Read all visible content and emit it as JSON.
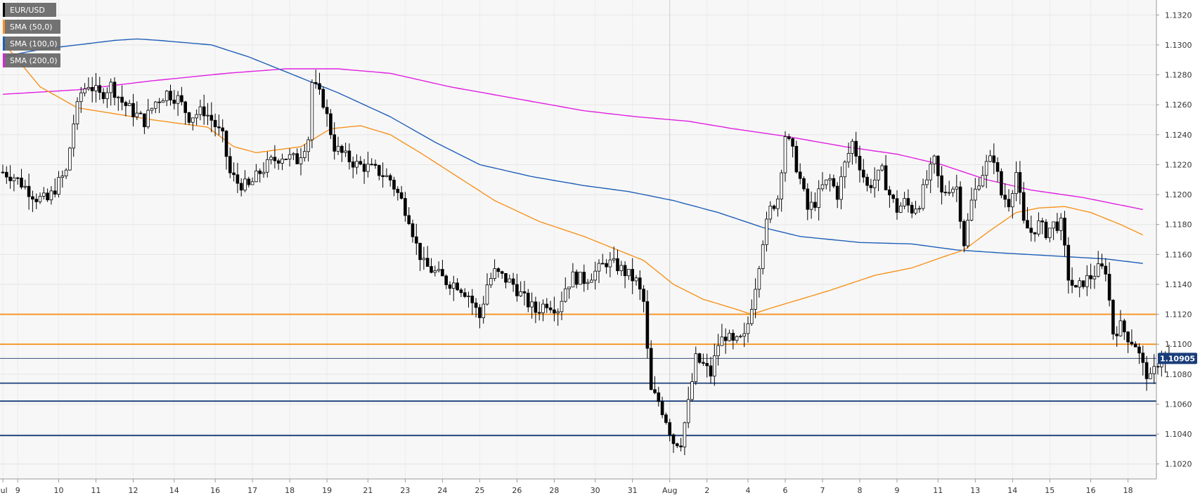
{
  "chart_data": {
    "type": "candlestick",
    "symbol": "EUR/USD",
    "legend_placement": "top-left",
    "legend": [
      {
        "label": "EUR/USD",
        "color": "#000000"
      },
      {
        "label": "SMA (50,0)",
        "color": "#f7931e"
      },
      {
        "label": "SMA (100,0)",
        "color": "#1f5fb8"
      },
      {
        "label": "SMA (200,0)",
        "color": "#e020e0"
      }
    ],
    "ylim": [
      1.101,
      1.133
    ],
    "y_ticks": [
      "1.1020",
      "1.1040",
      "1.1060",
      "1.1080",
      "1.1100",
      "1.1120",
      "1.1140",
      "1.1160",
      "1.1180",
      "1.1200",
      "1.1220",
      "1.1240",
      "1.1260",
      "1.1280",
      "1.1300",
      "1.1320"
    ],
    "x_ticks": [
      {
        "label": "Jul",
        "i": 0
      },
      {
        "label": "9",
        "i": 4
      },
      {
        "label": "10",
        "i": 15
      },
      {
        "label": "11",
        "i": 25
      },
      {
        "label": "12",
        "i": 35
      },
      {
        "label": "14",
        "i": 46
      },
      {
        "label": "16",
        "i": 57
      },
      {
        "label": "17",
        "i": 67
      },
      {
        "label": "18",
        "i": 77
      },
      {
        "label": "19",
        "i": 87
      },
      {
        "label": "21",
        "i": 98
      },
      {
        "label": "23",
        "i": 108
      },
      {
        "label": "24",
        "i": 118
      },
      {
        "label": "25",
        "i": 128
      },
      {
        "label": "26",
        "i": 138
      },
      {
        "label": "28",
        "i": 148
      },
      {
        "label": "30",
        "i": 159
      },
      {
        "label": "31",
        "i": 169
      },
      {
        "label": "Aug",
        "i": 179
      },
      {
        "label": "2",
        "i": 189
      },
      {
        "label": "4",
        "i": 200
      },
      {
        "label": "6",
        "i": 210
      },
      {
        "label": "7",
        "i": 220
      },
      {
        "label": "8",
        "i": 230
      },
      {
        "label": "9",
        "i": 240
      },
      {
        "label": "11",
        "i": 251
      },
      {
        "label": "13",
        "i": 261
      },
      {
        "label": "14",
        "i": 271
      },
      {
        "label": "15",
        "i": 281
      },
      {
        "label": "16",
        "i": 292
      },
      {
        "label": "18",
        "i": 302
      }
    ],
    "vertical_separator_index": 179,
    "grid": true,
    "current_price": {
      "label": "1.10905",
      "value": 1.10905,
      "color": "#1a3d7a"
    },
    "horizontal_levels": [
      {
        "value": 1.112,
        "color": "#f7931e"
      },
      {
        "value": 1.11,
        "color": "#f7931e"
      },
      {
        "value": 1.1074,
        "color": "#1a3d7a"
      },
      {
        "value": 1.1062,
        "color": "#1a3d7a"
      },
      {
        "value": 1.1039,
        "color": "#1a3d7a"
      }
    ],
    "price_anchors": [
      [
        0,
        1.1215
      ],
      [
        3,
        1.1212
      ],
      [
        6,
        1.1205
      ],
      [
        9,
        1.1198
      ],
      [
        12,
        1.1196
      ],
      [
        15,
        1.1208
      ],
      [
        17,
        1.1215
      ],
      [
        19,
        1.1248
      ],
      [
        21,
        1.1268
      ],
      [
        23,
        1.1274
      ],
      [
        26,
        1.1266
      ],
      [
        29,
        1.1273
      ],
      [
        32,
        1.1262
      ],
      [
        35,
        1.1255
      ],
      [
        38,
        1.1249
      ],
      [
        41,
        1.1262
      ],
      [
        44,
        1.1268
      ],
      [
        47,
        1.1264
      ],
      [
        50,
        1.1252
      ],
      [
        54,
        1.1256
      ],
      [
        56,
        1.125
      ],
      [
        59,
        1.1238
      ],
      [
        61,
        1.1214
      ],
      [
        63,
        1.1208
      ],
      [
        66,
        1.1205
      ],
      [
        69,
        1.1215
      ],
      [
        72,
        1.1222
      ],
      [
        75,
        1.1226
      ],
      [
        79,
        1.1223
      ],
      [
        82,
        1.1238
      ],
      [
        83,
        1.1275
      ],
      [
        86,
        1.1262
      ],
      [
        89,
        1.1232
      ],
      [
        92,
        1.1225
      ],
      [
        95,
        1.122
      ],
      [
        98,
        1.1218
      ],
      [
        101,
        1.1215
      ],
      [
        104,
        1.121
      ],
      [
        107,
        1.1196
      ],
      [
        109,
        1.1185
      ],
      [
        111,
        1.1166
      ],
      [
        113,
        1.1153
      ],
      [
        116,
        1.1148
      ],
      [
        119,
        1.1142
      ],
      [
        122,
        1.114
      ],
      [
        125,
        1.1133
      ],
      [
        128,
        1.1118
      ],
      [
        130,
        1.114
      ],
      [
        132,
        1.1148
      ],
      [
        134,
        1.1145
      ],
      [
        137,
        1.114
      ],
      [
        140,
        1.113
      ],
      [
        143,
        1.1122
      ],
      [
        146,
        1.1128
      ],
      [
        149,
        1.1124
      ],
      [
        151,
        1.1138
      ],
      [
        153,
        1.1145
      ],
      [
        156,
        1.1143
      ],
      [
        160,
        1.115
      ],
      [
        162,
        1.1155
      ],
      [
        165,
        1.1152
      ],
      [
        167,
        1.1148
      ],
      [
        170,
        1.1142
      ],
      [
        172,
        1.1128
      ],
      [
        173,
        1.1095
      ],
      [
        174,
        1.1068
      ],
      [
        176,
        1.1062
      ],
      [
        178,
        1.105
      ],
      [
        180,
        1.1035
      ],
      [
        182,
        1.1035
      ],
      [
        184,
        1.106
      ],
      [
        186,
        1.109
      ],
      [
        188,
        1.1086
      ],
      [
        190,
        1.108
      ],
      [
        192,
        1.11
      ],
      [
        194,
        1.1106
      ],
      [
        196,
        1.11
      ],
      [
        199,
        1.1104
      ],
      [
        200,
        1.1114
      ],
      [
        202,
        1.114
      ],
      [
        204,
        1.117
      ],
      [
        206,
        1.119
      ],
      [
        208,
        1.1198
      ],
      [
        210,
        1.124
      ],
      [
        212,
        1.1228
      ],
      [
        214,
        1.121
      ],
      [
        216,
        1.119
      ],
      [
        218,
        1.1195
      ],
      [
        220,
        1.1205
      ],
      [
        222,
        1.121
      ],
      [
        224,
        1.12
      ],
      [
        226,
        1.122
      ],
      [
        228,
        1.1235
      ],
      [
        230,
        1.122
      ],
      [
        232,
        1.1205
      ],
      [
        234,
        1.121
      ],
      [
        236,
        1.1215
      ],
      [
        238,
        1.12
      ],
      [
        240,
        1.119
      ],
      [
        242,
        1.1195
      ],
      [
        244,
        1.119
      ],
      [
        246,
        1.1195
      ],
      [
        248,
        1.121
      ],
      [
        250,
        1.1222
      ],
      [
        252,
        1.12
      ],
      [
        254,
        1.1205
      ],
      [
        256,
        1.1205
      ],
      [
        258,
        1.1168
      ],
      [
        260,
        1.1195
      ],
      [
        262,
        1.121
      ],
      [
        264,
        1.122
      ],
      [
        266,
        1.1225
      ],
      [
        268,
        1.12
      ],
      [
        270,
        1.1195
      ],
      [
        272,
        1.1215
      ],
      [
        274,
        1.118
      ],
      [
        276,
        1.1175
      ],
      [
        278,
        1.118
      ],
      [
        280,
        1.1175
      ],
      [
        282,
        1.118
      ],
      [
        284,
        1.118
      ],
      [
        286,
        1.1145
      ],
      [
        288,
        1.1135
      ],
      [
        290,
        1.1142
      ],
      [
        292,
        1.1145
      ],
      [
        294,
        1.115
      ],
      [
        296,
        1.115
      ],
      [
        298,
        1.1108
      ],
      [
        300,
        1.1112
      ],
      [
        302,
        1.1105
      ],
      [
        304,
        1.11
      ],
      [
        306,
        1.1085
      ],
      [
        308,
        1.1076
      ],
      [
        310,
        1.1088
      ],
      [
        312,
        1.1092
      ],
      [
        313,
        1.109
      ]
    ],
    "sma_50": [
      [
        0,
        1.1302
      ],
      [
        10,
        1.1272
      ],
      [
        20,
        1.1258
      ],
      [
        40,
        1.125
      ],
      [
        55,
        1.1245
      ],
      [
        62,
        1.1232
      ],
      [
        68,
        1.1228
      ],
      [
        80,
        1.1232
      ],
      [
        88,
        1.1244
      ],
      [
        96,
        1.1246
      ],
      [
        104,
        1.124
      ],
      [
        112,
        1.1228
      ],
      [
        122,
        1.1212
      ],
      [
        132,
        1.1196
      ],
      [
        144,
        1.1182
      ],
      [
        156,
        1.1172
      ],
      [
        165,
        1.1163
      ],
      [
        172,
        1.1156
      ],
      [
        180,
        1.114
      ],
      [
        188,
        1.113
      ],
      [
        196,
        1.1124
      ],
      [
        201,
        1.112
      ],
      [
        206,
        1.1124
      ],
      [
        214,
        1.113
      ],
      [
        222,
        1.1136
      ],
      [
        234,
        1.1146
      ],
      [
        244,
        1.1151
      ],
      [
        252,
        1.1158
      ],
      [
        258,
        1.1163
      ],
      [
        265,
        1.1176
      ],
      [
        272,
        1.1188
      ],
      [
        278,
        1.1191
      ],
      [
        285,
        1.1192
      ],
      [
        292,
        1.1188
      ],
      [
        300,
        1.118
      ],
      [
        306,
        1.1173
      ]
    ],
    "sma_100": [
      [
        0,
        1.1292
      ],
      [
        10,
        1.1297
      ],
      [
        20,
        1.13
      ],
      [
        30,
        1.1303
      ],
      [
        36,
        1.1304
      ],
      [
        42,
        1.1303
      ],
      [
        56,
        1.13
      ],
      [
        66,
        1.1292
      ],
      [
        76,
        1.1282
      ],
      [
        90,
        1.1268
      ],
      [
        104,
        1.1252
      ],
      [
        116,
        1.1235
      ],
      [
        128,
        1.122
      ],
      [
        142,
        1.1212
      ],
      [
        156,
        1.1206
      ],
      [
        168,
        1.1202
      ],
      [
        180,
        1.1196
      ],
      [
        192,
        1.1188
      ],
      [
        204,
        1.1178
      ],
      [
        214,
        1.1172
      ],
      [
        230,
        1.1168
      ],
      [
        244,
        1.1167
      ],
      [
        256,
        1.1163
      ],
      [
        268,
        1.1161
      ],
      [
        282,
        1.1159
      ],
      [
        296,
        1.1157
      ],
      [
        306,
        1.1154
      ]
    ],
    "sma_200": [
      [
        0,
        1.1267
      ],
      [
        20,
        1.127
      ],
      [
        40,
        1.1276
      ],
      [
        60,
        1.1281
      ],
      [
        76,
        1.1284
      ],
      [
        90,
        1.1284
      ],
      [
        104,
        1.1281
      ],
      [
        120,
        1.1272
      ],
      [
        138,
        1.1264
      ],
      [
        156,
        1.1256
      ],
      [
        170,
        1.1252
      ],
      [
        184,
        1.1249
      ],
      [
        196,
        1.1244
      ],
      [
        210,
        1.1239
      ],
      [
        226,
        1.1232
      ],
      [
        240,
        1.1227
      ],
      [
        252,
        1.122
      ],
      [
        264,
        1.121
      ],
      [
        276,
        1.1203
      ],
      [
        290,
        1.1198
      ],
      [
        306,
        1.119
      ]
    ]
  }
}
